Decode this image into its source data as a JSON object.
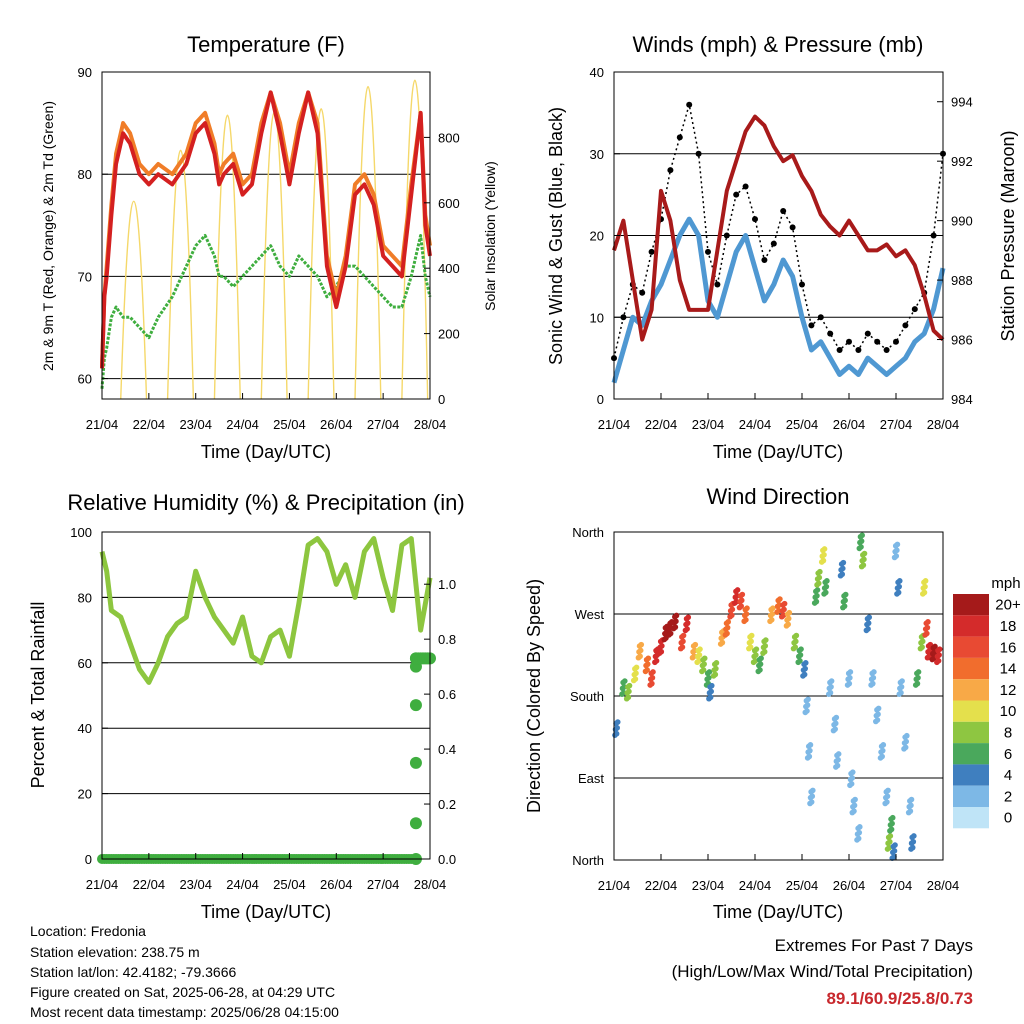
{
  "chart_data": [
    {
      "type": "line",
      "title": "Temperature (F)",
      "xlabel": "Time (Day/UTC)",
      "ylabel": "2m & 9m T (Red, Orange) & 2m Td (Green)",
      "ylabel_right": "Solar Insolation (Yellow)",
      "x_ticks": [
        "21/04",
        "22/04",
        "23/04",
        "24/04",
        "25/04",
        "26/04",
        "27/04",
        "28/04"
      ],
      "ylim": [
        58,
        90
      ],
      "y_ticks": [
        "60",
        "70",
        "80",
        "90"
      ],
      "ylim_right": [
        0,
        1000
      ],
      "y_ticks_right": [
        "0",
        "200",
        "400",
        "600",
        "800"
      ],
      "grid": true,
      "x": [
        0,
        0.05,
        0.1,
        0.2,
        0.3,
        0.45,
        0.6,
        0.8,
        1.0,
        1.2,
        1.5,
        1.8,
        2.0,
        2.2,
        2.4,
        2.5,
        2.6,
        2.8,
        3.0,
        3.2,
        3.4,
        3.6,
        3.8,
        4.0,
        4.2,
        4.4,
        4.6,
        4.8,
        5.0,
        5.2,
        5.4,
        5.6,
        5.8,
        6.0,
        6.2,
        6.4,
        6.6,
        6.8,
        6.9,
        7.0
      ],
      "series": [
        {
          "name": "2m T",
          "color": "#d42020",
          "values": [
            61,
            68,
            70,
            76,
            81,
            84,
            83,
            80,
            79,
            80,
            79,
            81,
            84,
            85,
            82,
            79,
            80,
            81,
            78,
            79,
            84,
            88,
            84,
            79,
            84,
            88,
            84,
            71,
            67,
            71,
            78,
            79,
            77,
            72,
            71,
            70,
            78,
            86,
            75,
            72
          ]
        },
        {
          "name": "9m T",
          "color": "#f07d28",
          "values": [
            61,
            68,
            71,
            77,
            82,
            85,
            84,
            81,
            80,
            81,
            80,
            82,
            85,
            86,
            83,
            80,
            81,
            82,
            79,
            80,
            85,
            88,
            85,
            80,
            85,
            88,
            85,
            72,
            68,
            72,
            79,
            80,
            78,
            73,
            72,
            71,
            79,
            86,
            76,
            73
          ]
        },
        {
          "name": "2m Td",
          "color": "#3fae3f",
          "values": [
            59,
            62,
            63,
            66,
            67,
            66,
            66,
            65,
            64,
            66,
            68,
            71,
            73,
            74,
            72,
            70,
            70,
            69,
            70,
            71,
            72,
            73,
            71,
            70,
            72,
            71,
            70,
            68,
            69,
            71,
            71,
            70,
            69,
            68,
            67,
            67,
            70,
            74,
            70,
            68
          ]
        }
      ],
      "insolation": {
        "name": "Solar Insolation",
        "color": "#f5d86a",
        "days": [
          21,
          22,
          23,
          24,
          25,
          26,
          27
        ],
        "peaks": [
          620,
          780,
          890,
          900,
          910,
          980,
          1000
        ]
      }
    },
    {
      "type": "line",
      "title": "Winds (mph) & Pressure (mb)",
      "xlabel": "Time (Day/UTC)",
      "ylabel": "Sonic Wind & Gust (Blue, Black)",
      "ylabel_right": "Station Pressure (Maroon)",
      "x_ticks": [
        "21/04",
        "22/04",
        "23/04",
        "24/04",
        "25/04",
        "26/04",
        "27/04",
        "28/04"
      ],
      "ylim": [
        0,
        40
      ],
      "y_ticks": [
        "0",
        "10",
        "20",
        "30",
        "40"
      ],
      "ylim_right": [
        984,
        995
      ],
      "y_ticks_right": [
        "984",
        "986",
        "988",
        "990",
        "992",
        "994"
      ],
      "grid": true,
      "x": [
        0,
        0.2,
        0.4,
        0.6,
        0.8,
        1.0,
        1.2,
        1.4,
        1.6,
        1.8,
        2.0,
        2.2,
        2.4,
        2.6,
        2.8,
        3.0,
        3.2,
        3.4,
        3.6,
        3.8,
        4.0,
        4.2,
        4.4,
        4.6,
        4.8,
        5.0,
        5.2,
        5.4,
        5.6,
        5.8,
        6.0,
        6.2,
        6.4,
        6.6,
        6.8,
        7.0
      ],
      "series": [
        {
          "name": "Sonic Wind",
          "color": "#4f98d2",
          "values": [
            2,
            6,
            10,
            9,
            12,
            14,
            17,
            20,
            22,
            20,
            12,
            10,
            14,
            18,
            20,
            16,
            12,
            14,
            17,
            15,
            10,
            6,
            7,
            5,
            3,
            4,
            3,
            5,
            4,
            3,
            4,
            5,
            7,
            8,
            11,
            16
          ]
        },
        {
          "name": "Gust",
          "color": "#000000",
          "values": [
            5,
            10,
            14,
            13,
            18,
            22,
            28,
            32,
            36,
            30,
            18,
            14,
            20,
            25,
            26,
            22,
            17,
            19,
            23,
            21,
            14,
            9,
            10,
            8,
            6,
            7,
            6,
            8,
            7,
            6,
            7,
            9,
            11,
            13,
            20,
            30
          ]
        },
        {
          "name": "Station Pressure",
          "color": "#a81a1a",
          "values": [
            989,
            990,
            988,
            986,
            987,
            991,
            990,
            988,
            987,
            987,
            987,
            989,
            991,
            992,
            993,
            993.5,
            993.2,
            992.5,
            992,
            992.2,
            991.5,
            991,
            990.2,
            989.8,
            989.5,
            990,
            989.5,
            989,
            989,
            989.2,
            988.8,
            989,
            988.5,
            987.5,
            986.3,
            986
          ]
        }
      ]
    },
    {
      "type": "line",
      "title": "Relative Humidity (%) & Precipitation (in)",
      "xlabel": "Time (Day/UTC)",
      "ylabel": "Percent & Total Rainfall",
      "x_ticks": [
        "21/04",
        "22/04",
        "23/04",
        "24/04",
        "25/04",
        "26/04",
        "27/04",
        "28/04"
      ],
      "ylim": [
        0,
        100
      ],
      "y_ticks": [
        "0",
        "20",
        "40",
        "60",
        "80",
        "100"
      ],
      "ylim_right": [
        0,
        1.19
      ],
      "y_ticks_right": [
        "0.0",
        "0.2",
        "0.4",
        "0.6",
        "0.8",
        "1.0"
      ],
      "grid": true,
      "x": [
        0,
        0.1,
        0.2,
        0.4,
        0.6,
        0.8,
        1.0,
        1.2,
        1.4,
        1.6,
        1.8,
        2.0,
        2.2,
        2.4,
        2.6,
        2.8,
        3.0,
        3.2,
        3.4,
        3.6,
        3.8,
        4.0,
        4.2,
        4.4,
        4.6,
        4.8,
        5.0,
        5.2,
        5.4,
        5.6,
        5.8,
        6.0,
        6.2,
        6.4,
        6.6,
        6.8,
        7.0
      ],
      "series": [
        {
          "name": "Relative Humidity",
          "color": "#8dc63f",
          "values": [
            94,
            88,
            76,
            74,
            66,
            58,
            54,
            60,
            68,
            72,
            74,
            88,
            80,
            74,
            70,
            66,
            74,
            62,
            60,
            68,
            70,
            62,
            78,
            96,
            98,
            94,
            84,
            90,
            80,
            94,
            98,
            86,
            76,
            96,
            98,
            70,
            86
          ]
        },
        {
          "name": "Precipitation",
          "color": "#3fae3f",
          "values": [
            0,
            0,
            0,
            0,
            0,
            0,
            0,
            0,
            0,
            0,
            0,
            0,
            0,
            0,
            0,
            0,
            0,
            0,
            0,
            0,
            0,
            0,
            0,
            0,
            0,
            0,
            0,
            0,
            0,
            0,
            0,
            0,
            0,
            0,
            0.73,
            0.73,
            0.73
          ]
        }
      ],
      "precip_jump_points": [
        0.0,
        0.13,
        0.35,
        0.56,
        0.7,
        0.73
      ]
    },
    {
      "type": "scatter",
      "title": "Wind Direction",
      "xlabel": "Time (Day/UTC)",
      "ylabel": "Direction (Colored By Speed)",
      "x_ticks": [
        "21/04",
        "22/04",
        "23/04",
        "24/04",
        "25/04",
        "26/04",
        "27/04",
        "28/04"
      ],
      "ylim": [
        0,
        360
      ],
      "y_ticks": [
        "North",
        "East",
        "South",
        "West",
        "North"
      ],
      "grid": true,
      "legend_title": "mph",
      "legend_placement": "right",
      "legend_labels": [
        "20+",
        "18",
        "16",
        "14",
        "12",
        "10",
        "8",
        "6",
        "4",
        "2",
        "0"
      ],
      "legend_colors": [
        "#a51a1a",
        "#d42b2b",
        "#e84a33",
        "#f16d2d",
        "#f8a947",
        "#e4e04c",
        "#8ec641",
        "#4aa85c",
        "#3f7fbf",
        "#7db8e6",
        "#bfe4f7"
      ],
      "points": [
        [
          0.05,
          145,
          4
        ],
        [
          0.2,
          190,
          6
        ],
        [
          0.3,
          185,
          8
        ],
        [
          0.45,
          205,
          10
        ],
        [
          0.55,
          230,
          12
        ],
        [
          0.7,
          215,
          14
        ],
        [
          0.8,
          200,
          16
        ],
        [
          0.9,
          225,
          18
        ],
        [
          1.0,
          235,
          18
        ],
        [
          1.1,
          250,
          20
        ],
        [
          1.2,
          255,
          20
        ],
        [
          1.3,
          262,
          20
        ],
        [
          1.45,
          240,
          16
        ],
        [
          1.55,
          260,
          18
        ],
        [
          1.7,
          230,
          12
        ],
        [
          1.8,
          225,
          10
        ],
        [
          1.9,
          215,
          8
        ],
        [
          2.0,
          200,
          6
        ],
        [
          2.05,
          185,
          4
        ],
        [
          2.15,
          210,
          8
        ],
        [
          2.3,
          245,
          12
        ],
        [
          2.4,
          255,
          14
        ],
        [
          2.5,
          275,
          16
        ],
        [
          2.6,
          290,
          18
        ],
        [
          2.7,
          285,
          16
        ],
        [
          2.8,
          270,
          14
        ],
        [
          2.9,
          240,
          10
        ],
        [
          3.0,
          225,
          8
        ],
        [
          3.1,
          215,
          6
        ],
        [
          3.2,
          235,
          8
        ],
        [
          3.35,
          270,
          12
        ],
        [
          3.5,
          280,
          14
        ],
        [
          3.6,
          275,
          16
        ],
        [
          3.7,
          265,
          12
        ],
        [
          3.85,
          240,
          8
        ],
        [
          3.95,
          225,
          6
        ],
        [
          4.05,
          210,
          4
        ],
        [
          4.1,
          170,
          2
        ],
        [
          4.15,
          120,
          2
        ],
        [
          4.2,
          70,
          1
        ],
        [
          4.3,
          290,
          6
        ],
        [
          4.35,
          310,
          8
        ],
        [
          4.45,
          335,
          10
        ],
        [
          4.5,
          300,
          6
        ],
        [
          4.6,
          190,
          2
        ],
        [
          4.7,
          150,
          2
        ],
        [
          4.75,
          110,
          1
        ],
        [
          4.85,
          320,
          4
        ],
        [
          4.9,
          285,
          6
        ],
        [
          5.0,
          200,
          2
        ],
        [
          5.05,
          90,
          2
        ],
        [
          5.1,
          60,
          2
        ],
        [
          5.2,
          30,
          1
        ],
        [
          5.25,
          350,
          6
        ],
        [
          5.3,
          330,
          8
        ],
        [
          5.4,
          260,
          4
        ],
        [
          5.5,
          200,
          2
        ],
        [
          5.6,
          160,
          2
        ],
        [
          5.7,
          120,
          1
        ],
        [
          5.8,
          70,
          2
        ],
        [
          5.85,
          20,
          8
        ],
        [
          5.9,
          40,
          6
        ],
        [
          5.95,
          10,
          4
        ],
        [
          6.0,
          340,
          2
        ],
        [
          6.05,
          300,
          4
        ],
        [
          6.1,
          190,
          2
        ],
        [
          6.2,
          130,
          2
        ],
        [
          6.3,
          60,
          1
        ],
        [
          6.35,
          20,
          4
        ],
        [
          6.45,
          200,
          6
        ],
        [
          6.55,
          240,
          8
        ],
        [
          6.6,
          300,
          10
        ],
        [
          6.65,
          255,
          16
        ],
        [
          6.7,
          230,
          18
        ],
        [
          6.8,
          228,
          20
        ],
        [
          6.9,
          225,
          18
        ]
      ]
    }
  ],
  "info": {
    "location": "Location: Fredonia",
    "elevation": "Station elevation: 238.75 m",
    "latlon": "Station lat/lon: 42.4182; -79.3666",
    "created": "Figure created on Sat, 2025-06-28, at 04:29 UTC",
    "recent": "Most recent data timestamp: 2025/06/28 04:15:00"
  },
  "extremes": {
    "title": "Extremes For Past 7 Days",
    "subtitle": "(High/Low/Max Wind/Total Precipitation)",
    "values": "89.1/60.9/25.8/0.73",
    "value_color": "#c8282d"
  }
}
